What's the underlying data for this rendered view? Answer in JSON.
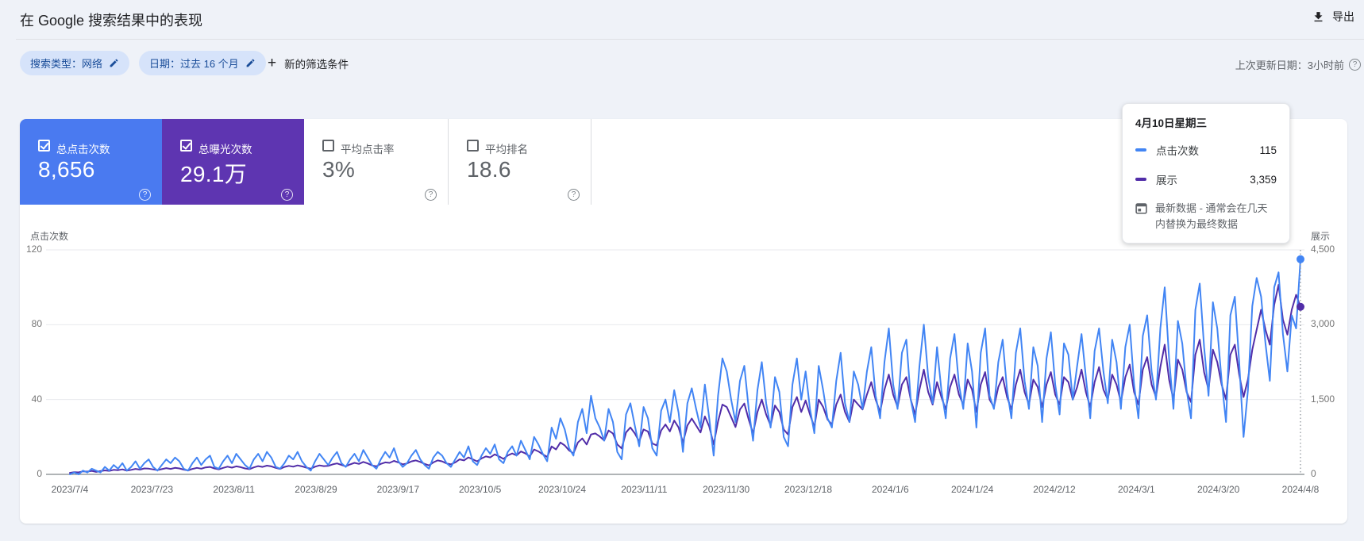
{
  "header": {
    "title": "在 Google 搜索结果中的表现",
    "export_label": "导出"
  },
  "filters": {
    "search_type_chip": "搜索类型：网络",
    "date_chip": "日期：过去 16 个月",
    "plus": "+",
    "new_filter_label": "新的筛选条件",
    "last_updated": "上次更新日期：3小时前"
  },
  "metric_cards": [
    {
      "label": "总点击次数",
      "value": "8,656",
      "selected": true,
      "color": "#4a7af0"
    },
    {
      "label": "总曝光次数",
      "value": "29.1万",
      "selected": true,
      "color": "#5e35b1"
    },
    {
      "label": "平均点击率",
      "value": "3%",
      "selected": false,
      "color": "#ffffff"
    },
    {
      "label": "平均排名",
      "value": "18.6",
      "selected": false,
      "color": "#ffffff"
    }
  ],
  "help_glyph": "?",
  "tooltip": {
    "title": "4月10日星期三",
    "rows": [
      {
        "label": "点击次数",
        "value": "115",
        "color": "#4285f4"
      },
      {
        "label": "展示",
        "value": "3,359",
        "color": "#512da8"
      }
    ],
    "note": "最新数据 - 通常会在几天内替换为最终数据"
  },
  "chart_data": {
    "type": "line",
    "title": "在 Google 搜索结果中的表现",
    "grid": true,
    "left_axis": {
      "title": "点击次数",
      "max": 120,
      "ticks": [
        120,
        80,
        40,
        0
      ]
    },
    "right_axis": {
      "title": "展示",
      "max": 4500,
      "ticks": [
        "4,500",
        "3,000",
        "1,500",
        "0"
      ],
      "values": [
        4500,
        3000,
        1500,
        0
      ]
    },
    "x_ticks": [
      "2023/7/4",
      "2023/7/23",
      "2023/8/11",
      "2023/8/29",
      "2023/9/17",
      "2023/10/5",
      "2023/10/24",
      "2023/11/11",
      "2023/11/30",
      "2023/12/18",
      "2024/1/6",
      "2024/1/24",
      "2024/2/12",
      "2024/3/1",
      "2024/3/20",
      "2024/4/8"
    ],
    "x_range": [
      "2023/7/4",
      "2024/4/10"
    ],
    "hover_point": {
      "date": "4月10日星期三",
      "clicks": 115,
      "impressions": 3359
    },
    "series": [
      {
        "name": "点击次数",
        "axis": "left",
        "color": "#4285f4",
        "values": [
          0,
          1,
          0,
          2,
          1,
          3,
          2,
          1,
          4,
          2,
          5,
          3,
          6,
          2,
          4,
          7,
          3,
          6,
          8,
          4,
          2,
          5,
          8,
          6,
          9,
          7,
          3,
          2,
          6,
          9,
          5,
          8,
          10,
          4,
          3,
          7,
          10,
          6,
          11,
          8,
          5,
          3,
          8,
          11,
          7,
          12,
          9,
          4,
          3,
          6,
          10,
          8,
          12,
          7,
          4,
          2,
          7,
          11,
          8,
          5,
          9,
          12,
          6,
          4,
          8,
          11,
          7,
          13,
          9,
          5,
          3,
          8,
          12,
          9,
          14,
          7,
          4,
          6,
          10,
          13,
          8,
          5,
          3,
          9,
          12,
          10,
          6,
          4,
          8,
          12,
          9,
          15,
          7,
          5,
          10,
          14,
          11,
          16,
          8,
          6,
          12,
          15,
          10,
          18,
          13,
          8,
          20,
          16,
          11,
          7,
          25,
          19,
          30,
          24,
          14,
          10,
          28,
          35,
          22,
          42,
          30,
          25,
          18,
          35,
          28,
          12,
          8,
          32,
          38,
          26,
          15,
          36,
          30,
          14,
          10,
          34,
          40,
          28,
          45,
          33,
          12,
          38,
          46,
          35,
          25,
          48,
          30,
          10,
          42,
          62,
          55,
          40,
          28,
          50,
          58,
          35,
          18,
          45,
          60,
          38,
          25,
          52,
          44,
          20,
          15,
          48,
          62,
          40,
          55,
          35,
          22,
          58,
          45,
          30,
          25,
          50,
          65,
          38,
          28,
          55,
          48,
          35,
          55,
          68,
          42,
          30,
          60,
          78,
          48,
          35,
          65,
          72,
          40,
          28,
          58,
          80,
          52,
          38,
          68,
          45,
          30,
          62,
          75,
          48,
          35,
          70,
          55,
          25,
          65,
          78,
          42,
          35,
          60,
          72,
          45,
          30,
          65,
          78,
          50,
          35,
          68,
          58,
          28,
          62,
          76,
          48,
          32,
          70,
          64,
          40,
          58,
          75,
          52,
          30,
          66,
          78,
          55,
          38,
          72,
          60,
          35,
          68,
          80,
          48,
          30,
          74,
          85,
          55,
          40,
          78,
          100,
          62,
          35,
          82,
          70,
          45,
          30,
          88,
          102,
          68,
          42,
          92,
          78,
          50,
          28,
          85,
          95,
          60,
          20,
          45,
          90,
          105,
          95,
          70,
          50,
          100,
          108,
          75,
          55,
          85,
          78,
          115
        ]
      },
      {
        "name": "展示",
        "axis": "right",
        "color": "#512da8",
        "values": [
          30,
          45,
          40,
          60,
          55,
          70,
          50,
          65,
          80,
          70,
          90,
          85,
          100,
          75,
          90,
          110,
          95,
          120,
          115,
          100,
          85,
          105,
          125,
          110,
          130,
          120,
          95,
          80,
          110,
          130,
          115,
          140,
          150,
          120,
          100,
          130,
          155,
          135,
          160,
          145,
          120,
          105,
          140,
          165,
          150,
          175,
          160,
          130,
          110,
          150,
          170,
          155,
          180,
          160,
          135,
          115,
          155,
          180,
          165,
          170,
          200,
          220,
          190,
          160,
          200,
          230,
          210,
          250,
          220,
          180,
          160,
          210,
          240,
          230,
          270,
          240,
          200,
          220,
          260,
          280,
          250,
          210,
          180,
          240,
          280,
          260,
          220,
          200,
          240,
          300,
          280,
          340,
          300,
          260,
          320,
          360,
          340,
          400,
          360,
          310,
          380,
          420,
          380,
          460,
          420,
          360,
          500,
          460,
          400,
          350,
          560,
          500,
          640,
          580,
          480,
          420,
          640,
          720,
          600,
          800,
          820,
          760,
          680,
          880,
          820,
          600,
          520,
          840,
          940,
          820,
          660,
          900,
          860,
          620,
          580,
          880,
          1000,
          860,
          1080,
          940,
          640,
          980,
          1120,
          980,
          840,
          1160,
          960,
          600,
          1060,
          1400,
          1350,
          1150,
          950,
          1300,
          1420,
          1100,
          820,
          1250,
          1500,
          1200,
          980,
          1380,
          1250,
          900,
          800,
          1350,
          1550,
          1250,
          1480,
          1200,
          950,
          1500,
          1350,
          1100,
          1000,
          1400,
          1600,
          1250,
          1050,
          1500,
          1400,
          1300,
          1600,
          1850,
          1500,
          1250,
          1700,
          2000,
          1600,
          1350,
          1800,
          1950,
          1500,
          1200,
          1700,
          2100,
          1650,
          1400,
          1850,
          1550,
          1300,
          1750,
          2000,
          1600,
          1400,
          1900,
          1700,
          1250,
          1800,
          2050,
          1500,
          1350,
          1750,
          1950,
          1550,
          1300,
          1800,
          2100,
          1650,
          1400,
          1900,
          1750,
          1350,
          1800,
          2050,
          1600,
          1400,
          1950,
          1850,
          1500,
          1750,
          2100,
          1650,
          1350,
          1850,
          2150,
          1700,
          1500,
          2000,
          1800,
          1450,
          1950,
          2200,
          1650,
          1400,
          2100,
          2350,
          1800,
          1550,
          2150,
          2600,
          1900,
          1500,
          2300,
          2100,
          1650,
          1450,
          2400,
          2700,
          2050,
          1700,
          2500,
          2250,
          1800,
          1500,
          2400,
          2600,
          2000,
          1550,
          1900,
          2500,
          2900,
          3300,
          2900,
          2600,
          3400,
          3800,
          3100,
          2800,
          3300,
          3600,
          3359
        ]
      }
    ]
  }
}
